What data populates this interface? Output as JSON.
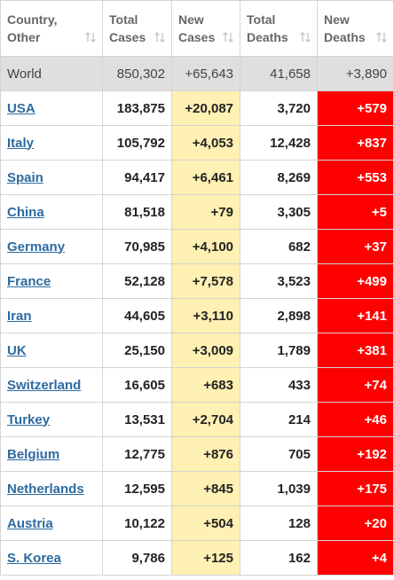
{
  "table": {
    "header": [
      "Country, Other",
      "Total Cases",
      "New Cases",
      "Total Deaths",
      "New Deaths"
    ],
    "world": [
      "World",
      "850,302",
      "+65,643",
      "41,658",
      "+3,890"
    ],
    "rows": [
      [
        "USA",
        "183,875",
        "+20,087",
        "3,720",
        "+579"
      ],
      [
        "Italy",
        "105,792",
        "+4,053",
        "12,428",
        "+837"
      ],
      [
        "Spain",
        "94,417",
        "+6,461",
        "8,269",
        "+553"
      ],
      [
        "China",
        "81,518",
        "+79",
        "3,305",
        "+5"
      ],
      [
        "Germany",
        "70,985",
        "+4,100",
        "682",
        "+37"
      ],
      [
        "France",
        "52,128",
        "+7,578",
        "3,523",
        "+499"
      ],
      [
        "Iran",
        "44,605",
        "+3,110",
        "2,898",
        "+141"
      ],
      [
        "UK",
        "25,150",
        "+3,009",
        "1,789",
        "+381"
      ],
      [
        "Switzerland",
        "16,605",
        "+683",
        "433",
        "+74"
      ],
      [
        "Turkey",
        "13,531",
        "+2,704",
        "214",
        "+46"
      ],
      [
        "Belgium",
        "12,775",
        "+876",
        "705",
        "+192"
      ],
      [
        "Netherlands",
        "12,595",
        "+845",
        "1,039",
        "+175"
      ],
      [
        "Austria",
        "10,122",
        "+504",
        "128",
        "+20"
      ],
      [
        "S. Korea",
        "9,786",
        "+125",
        "162",
        "+4"
      ]
    ]
  }
}
